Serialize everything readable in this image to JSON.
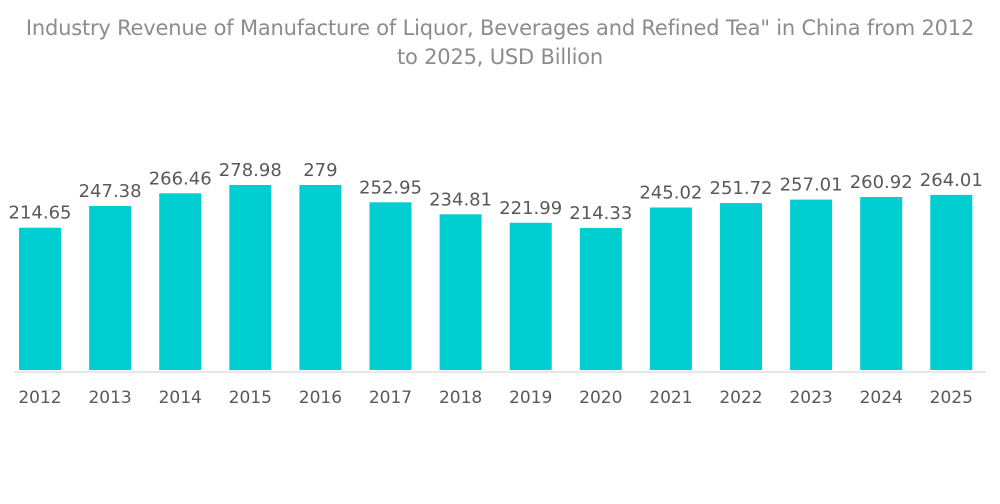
{
  "chart_data": {
    "type": "bar",
    "title_line1": "Industry Revenue of Manufacture of Liquor, Beverages and Refined Tea\" in China from 2012",
    "title_line2": "to 2025, USD Billion",
    "xlabel": "",
    "ylabel": "",
    "categories": [
      "2012",
      "2013",
      "2014",
      "2015",
      "2016",
      "2017",
      "2018",
      "2019",
      "2020",
      "2021",
      "2022",
      "2023",
      "2024",
      "2025"
    ],
    "values": [
      214.65,
      247.38,
      266.46,
      278.98,
      279,
      252.95,
      234.81,
      221.99,
      214.33,
      245.02,
      251.72,
      257.01,
      260.92,
      264.01
    ],
    "value_labels": [
      "214.65",
      "247.38",
      "266.46",
      "278.98",
      "279",
      "252.95",
      "234.81",
      "221.99",
      "214.33",
      "245.02",
      "251.72",
      "257.01",
      "260.92",
      "264.01"
    ],
    "ylim": [
      0,
      279
    ],
    "grid": false,
    "legend": "none",
    "colors": {
      "bar": "#00ced1",
      "text": "#595959",
      "title": "#8c8c8c"
    }
  }
}
